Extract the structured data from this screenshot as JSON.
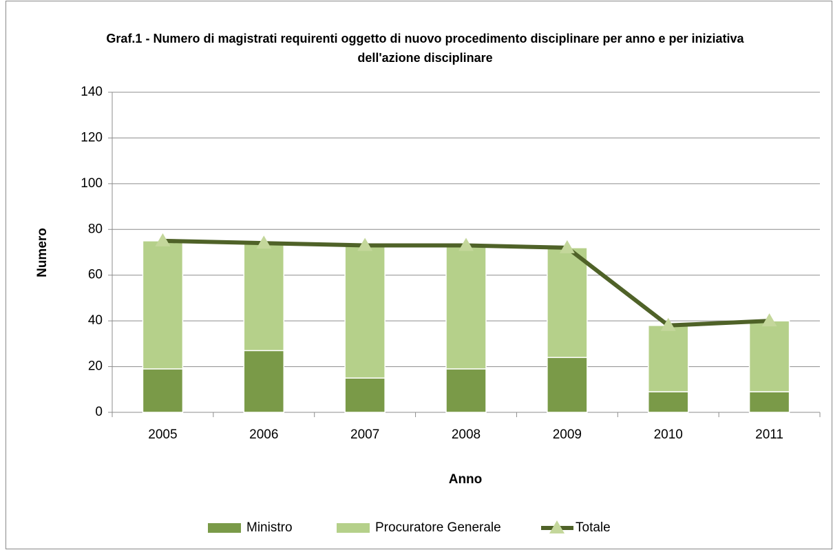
{
  "chart_data": {
    "type": "bar",
    "stacked": true,
    "title": "Graf.1 - Numero di magistrati requirenti oggetto di nuovo procedimento disciplinare per anno e per iniziativa dell'azione disciplinare",
    "x_label": "Anno",
    "y_label": "Numero",
    "categories": [
      "2005",
      "2006",
      "2007",
      "2008",
      "2009",
      "2010",
      "2011"
    ],
    "series": [
      {
        "name": "Ministro",
        "type": "bar",
        "color": "#7a9a48",
        "values": [
          19,
          27,
          15,
          19,
          24,
          9,
          9
        ]
      },
      {
        "name": "Procuratore Generale",
        "type": "bar",
        "color": "#b5d08a",
        "values": [
          56,
          47,
          58,
          54,
          48,
          29,
          31
        ]
      },
      {
        "name": "Totale",
        "type": "line",
        "color": "#4f6228",
        "marker_color": "#c4d79b",
        "values": [
          75,
          74,
          73,
          73,
          72,
          38,
          40
        ]
      }
    ],
    "ylim": [
      0,
      140
    ],
    "yticks": [
      0,
      20,
      40,
      60,
      80,
      100,
      120,
      140
    ],
    "grid": true,
    "legend": "bottom"
  }
}
